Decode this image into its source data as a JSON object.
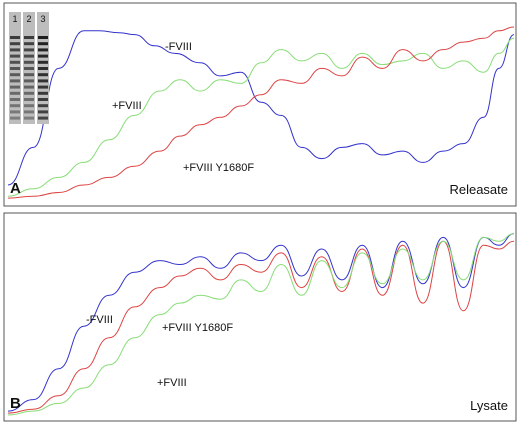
{
  "chart_data": [
    {
      "panel": "A",
      "type": "line",
      "title": "Releasate",
      "xlabel": "",
      "ylabel": "",
      "grid": false,
      "legend": "none (curve labels placed next to traces)",
      "xlim": [
        0,
        100
      ],
      "ylim": [
        0,
        100
      ],
      "series": [
        {
          "name": "-FVIII",
          "color": "#3333cc",
          "label_text": "-FVIII",
          "x": [
            0,
            5,
            10,
            15,
            18,
            22,
            25,
            29,
            33,
            38,
            42,
            46,
            50,
            54,
            58,
            62,
            66,
            70,
            74,
            78,
            82,
            86,
            90,
            94,
            97,
            100
          ],
          "y": [
            8,
            28,
            70,
            90,
            90,
            89,
            88,
            82,
            78,
            73,
            66,
            68,
            52,
            45,
            28,
            22,
            28,
            30,
            24,
            26,
            20,
            26,
            30,
            44,
            70,
            88
          ]
        },
        {
          "name": "+FVIII",
          "color": "#88dd77",
          "label_text": "+FVIII",
          "x": [
            0,
            5,
            10,
            15,
            20,
            25,
            30,
            34,
            38,
            42,
            46,
            50,
            54,
            58,
            62,
            66,
            70,
            74,
            78,
            82,
            86,
            90,
            94,
            97,
            100
          ],
          "y": [
            2,
            6,
            12,
            20,
            32,
            45,
            58,
            64,
            58,
            64,
            62,
            73,
            80,
            74,
            78,
            70,
            78,
            72,
            74,
            78,
            70,
            74,
            68,
            78,
            86
          ]
        },
        {
          "name": "+FVIII Y1680F",
          "color": "#dd4444",
          "label_text": "+FVIII Y1680F",
          "x": [
            0,
            5,
            10,
            15,
            20,
            25,
            30,
            34,
            38,
            42,
            46,
            50,
            54,
            58,
            62,
            66,
            70,
            74,
            78,
            82,
            86,
            90,
            94,
            97,
            100
          ],
          "y": [
            1,
            2,
            4,
            8,
            12,
            18,
            26,
            34,
            40,
            44,
            50,
            56,
            64,
            62,
            70,
            66,
            76,
            70,
            80,
            74,
            80,
            84,
            86,
            90,
            92
          ]
        }
      ],
      "inset_gel": {
        "lane_labels": [
          "1",
          "2",
          "3"
        ]
      }
    },
    {
      "panel": "B",
      "type": "line",
      "title": "Lysate",
      "xlabel": "",
      "ylabel": "",
      "grid": false,
      "legend": "none (curve labels placed next to traces)",
      "xlim": [
        0,
        100
      ],
      "ylim": [
        0,
        100
      ],
      "series": [
        {
          "name": "-FVIII",
          "color": "#3333cc",
          "label_text": "-FVIII",
          "x": [
            0,
            5,
            10,
            15,
            20,
            25,
            30,
            34,
            38,
            42,
            46,
            50,
            54,
            58,
            62,
            66,
            70,
            74,
            78,
            82,
            86,
            90,
            94,
            97,
            100
          ],
          "y": [
            2,
            8,
            24,
            46,
            62,
            74,
            80,
            78,
            82,
            76,
            84,
            80,
            88,
            72,
            86,
            70,
            88,
            66,
            90,
            68,
            92,
            66,
            92,
            88,
            94
          ]
        },
        {
          "name": "+FVIII Y1680F",
          "color": "#dd4444",
          "label_text": "+FVIII Y1680F",
          "x": [
            0,
            5,
            10,
            15,
            20,
            25,
            30,
            34,
            38,
            42,
            46,
            50,
            54,
            58,
            62,
            66,
            70,
            74,
            78,
            82,
            86,
            90,
            94,
            97,
            100
          ],
          "y": [
            1,
            3,
            10,
            24,
            40,
            56,
            66,
            72,
            76,
            70,
            78,
            74,
            84,
            66,
            82,
            64,
            86,
            62,
            88,
            58,
            90,
            54,
            88,
            86,
            90
          ]
        },
        {
          "name": "+FVIII",
          "color": "#88dd77",
          "label_text": "+FVIII",
          "x": [
            0,
            5,
            10,
            15,
            20,
            25,
            30,
            34,
            38,
            42,
            46,
            50,
            54,
            58,
            62,
            66,
            70,
            74,
            78,
            82,
            86,
            90,
            94,
            97,
            100
          ],
          "y": [
            0,
            2,
            6,
            14,
            26,
            40,
            52,
            58,
            62,
            60,
            70,
            64,
            78,
            62,
            80,
            66,
            84,
            68,
            86,
            70,
            90,
            70,
            92,
            90,
            94
          ]
        }
      ]
    }
  ]
}
